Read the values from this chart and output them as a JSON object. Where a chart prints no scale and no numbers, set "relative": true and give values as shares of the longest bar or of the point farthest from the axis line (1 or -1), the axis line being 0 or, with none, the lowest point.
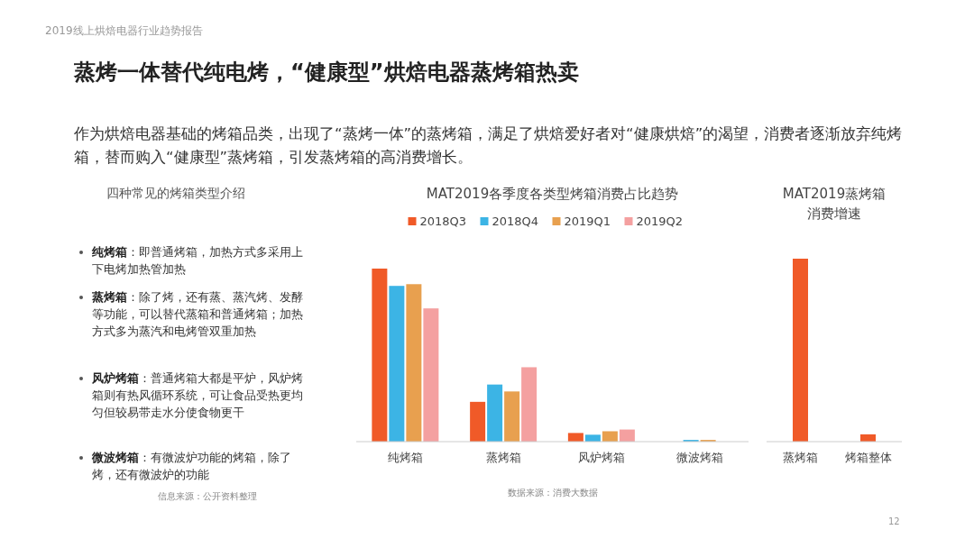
{
  "chart_data": [
    {
      "type": "other",
      "title": "蒸烤一体替代纯电烤，“健康型”烘焙电器蒸烤箱热卖",
      "subtitle": "作为烘焙电器基础的烤箱品类，出现了“蒸烤一体”的蒸烤箱，满足了烘焙爱好者对“健康烘焙”的渴望，消费者逐渐放弃纯烤箱，替而购入“健康型”蒸烤箱，引发蒸烤箱的高消费增长。",
      "annotations": [
        "2019线上烘焙电器行业趋势报告",
        "四种常见的烤箱类型介绍",
        "**纯烤箱**：即普通烤箱，加热方式多采用上下电烤加热管加热",
        "**蒸烤箱**：除了烤，还有蒸、蒸汽烤、发酵等功能，可以替代蒸箱和普通烤箱；加热方式多为蒸汽和电烤管双重加热",
        "**风炉烤箱**：普通烤箱大都是平炉，风炉烤箱则有热风循环系统，可让食品受热更均匀但较易带走水分使食物更干",
        "**微波烤箱**：有微波炉功能的烤箱，除了烤，还有微波炉的功能",
        "信息来源：公开资料整理",
        "12"
      ]
    },
    {
      "type": "bar",
      "title": "MAT2019各季度各类型烤箱消费占比趋势",
      "relative": true,
      "legend": "top",
      "categories": [
        "纯烤箱",
        "蒸烤箱",
        "风炉烤箱",
        "微波烤箱"
      ],
      "annotations": [
        "数据来源：消费大数据"
      ],
      "series": [
        {
          "name": "2018Q3",
          "color": "#f05a28",
          "values": [
            1,
            0.23,
            0.05,
            0
          ]
        },
        {
          "name": "2018Q4",
          "color": "#3cb4e5",
          "values": [
            0.9,
            0.33,
            0.04,
            0.01
          ]
        },
        {
          "name": "2019Q1",
          "color": "#e8a04f",
          "values": [
            0.91,
            0.29,
            0.06,
            0.01
          ]
        },
        {
          "name": "2019Q2",
          "color": "#f4a0a0",
          "values": [
            0.77,
            0.43,
            0.07,
            0
          ]
        }
      ]
    },
    {
      "type": "bar",
      "title": "MAT2019蒸烤箱消费增速",
      "relative": true,
      "categories": [
        "蒸烤箱",
        "烤箱整体"
      ],
      "color": "#f05a28",
      "values": [
        1,
        0.04
      ]
    }
  ]
}
